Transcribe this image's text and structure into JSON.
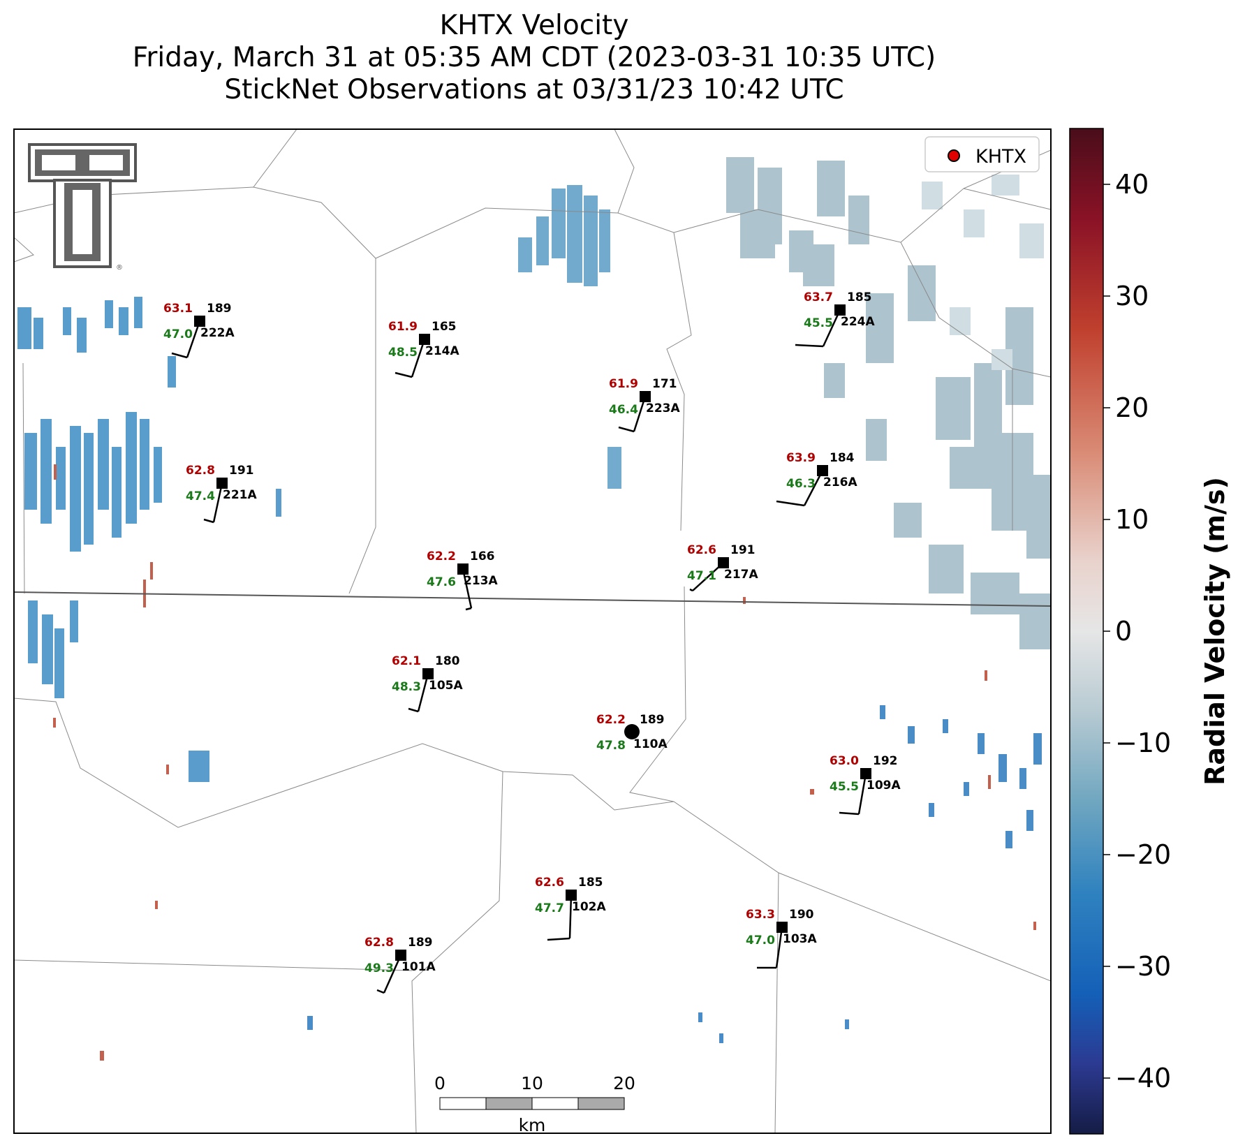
{
  "title": {
    "line1": "KHTX Velocity",
    "line2": "Friday, March 31 at 05:35 AM CDT (2023-03-31 10:35 UTC)",
    "line3": "StickNet Observations at 03/31/23 10:42 UTC"
  },
  "legend": {
    "label": "KHTX",
    "marker_color": "#e00000",
    "placement": "top-right"
  },
  "colorbar": {
    "label": "Radial Velocity (m/s)",
    "range": [
      -45,
      45
    ],
    "ticks": [
      "40",
      "30",
      "20",
      "10",
      "0",
      "−10",
      "−20",
      "−30",
      "−40"
    ],
    "colors": [
      "#4a0d1a",
      "#8a1226",
      "#c0402e",
      "#d98a74",
      "#e9d2cc",
      "#e6e6e6",
      "#b7cad2",
      "#6fa6c0",
      "#2f82bf",
      "#1460b8",
      "#2c3a92",
      "#151c45"
    ]
  },
  "scalebar": {
    "ticks": [
      "0",
      "10",
      "20"
    ],
    "unit": "km"
  },
  "logo": {
    "text": "TT",
    "name": "texas-tech-logo"
  },
  "stations": [
    {
      "id": "222A",
      "temp": "63.1",
      "dew": "47.0",
      "dir": "189"
    },
    {
      "id": "214A",
      "temp": "61.9",
      "dew": "48.5",
      "dir": "165"
    },
    {
      "id": "223A",
      "temp": "61.9",
      "dew": "46.4",
      "dir": "171"
    },
    {
      "id": "224A",
      "temp": "63.7",
      "dew": "45.5",
      "dir": "185"
    },
    {
      "id": "221A",
      "temp": "62.8",
      "dew": "47.4",
      "dir": "191"
    },
    {
      "id": "216A",
      "temp": "63.9",
      "dew": "46.3",
      "dir": "184"
    },
    {
      "id": "213A",
      "temp": "62.2",
      "dew": "47.6",
      "dir": "166"
    },
    {
      "id": "217A",
      "temp": "62.6",
      "dew": "47.1",
      "dir": "191"
    },
    {
      "id": "105A",
      "temp": "62.1",
      "dew": "48.3",
      "dir": "180"
    },
    {
      "id": "110A",
      "temp": "62.2",
      "dew": "47.8",
      "dir": "189"
    },
    {
      "id": "109A",
      "temp": "63.0",
      "dew": "45.5",
      "dir": "192"
    },
    {
      "id": "102A",
      "temp": "62.6",
      "dew": "47.7",
      "dir": "185"
    },
    {
      "id": "103A",
      "temp": "63.3",
      "dew": "47.0",
      "dir": "190"
    },
    {
      "id": "101A",
      "temp": "62.8",
      "dew": "49.3",
      "dir": "189"
    }
  ]
}
